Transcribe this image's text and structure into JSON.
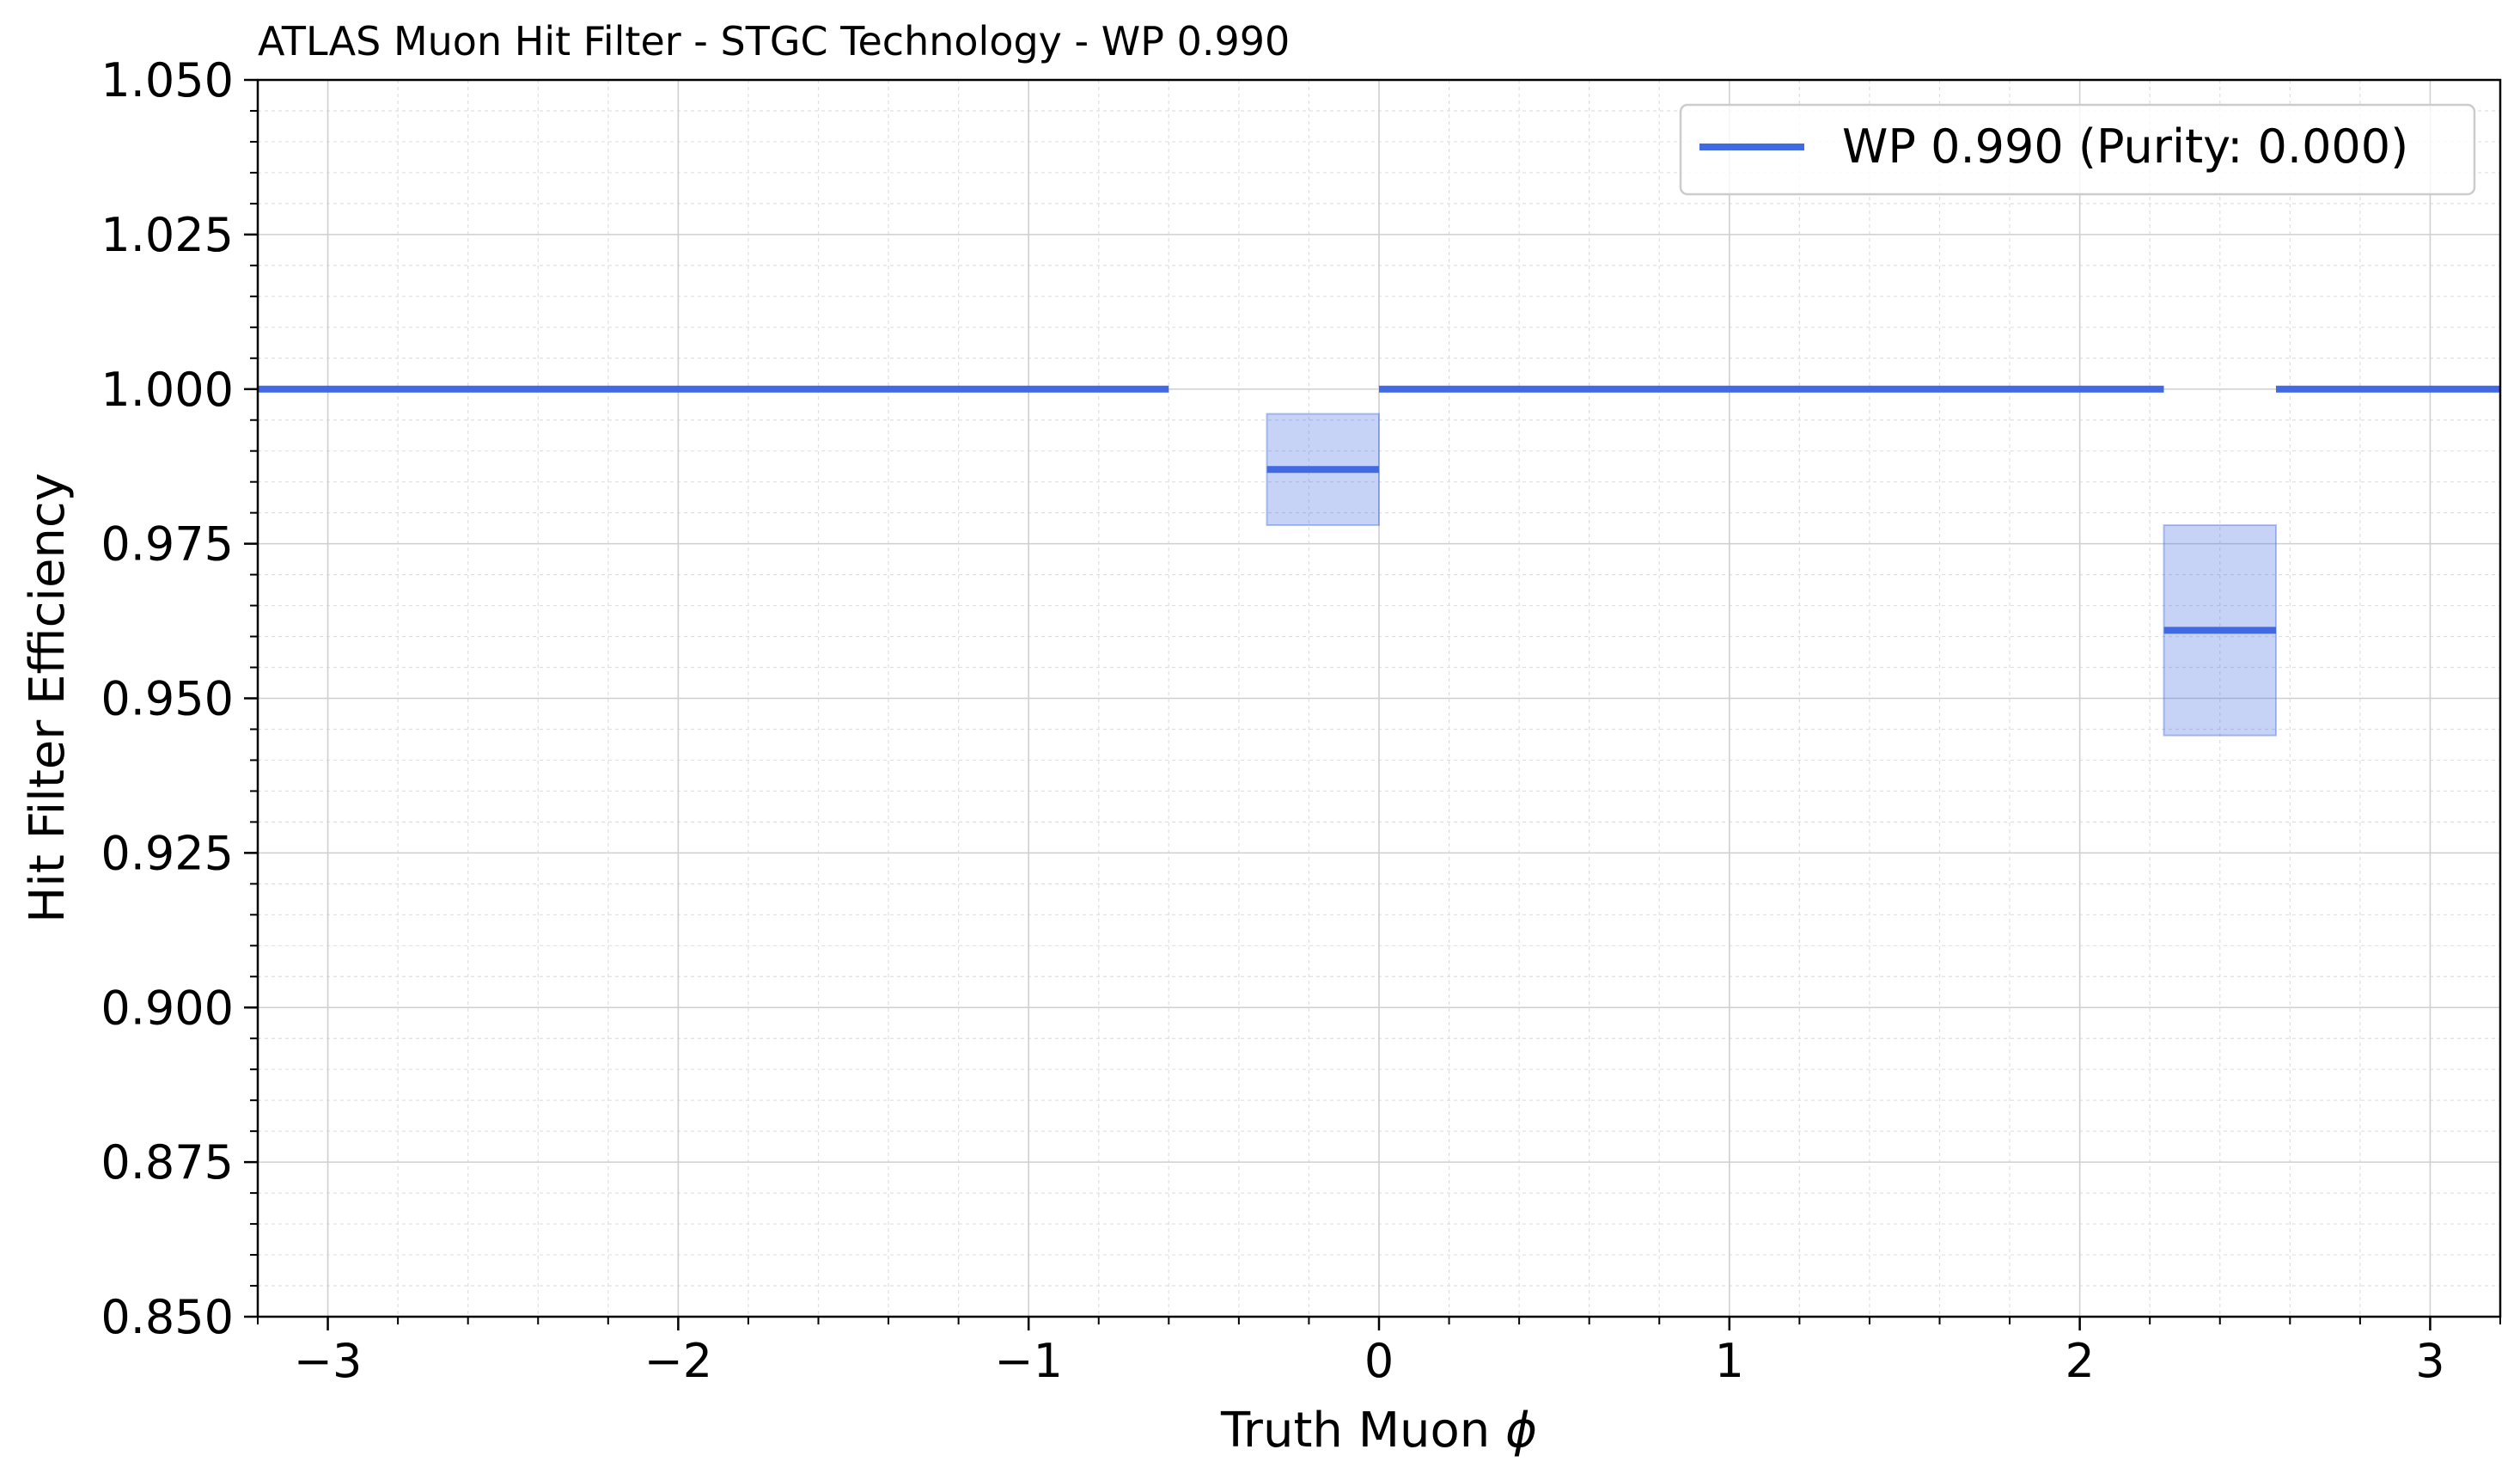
{
  "chart_data": {
    "type": "step",
    "title": "ATLAS Muon Hit Filter - STGC Technology - WP 0.990",
    "xlabel": "Truth Muon",
    "xlabel_symbol": "ϕ",
    "ylabel": "Hit Filter Efficiency",
    "xlim": [
      -3.2,
      3.2
    ],
    "ylim": [
      0.85,
      1.05
    ],
    "x_ticks": [
      {
        "value": -3,
        "label": "−3"
      },
      {
        "value": -2,
        "label": "−2"
      },
      {
        "value": -1,
        "label": "−1"
      },
      {
        "value": 0,
        "label": "0"
      },
      {
        "value": 1,
        "label": "1"
      },
      {
        "value": 2,
        "label": "2"
      },
      {
        "value": 3,
        "label": "3"
      }
    ],
    "y_ticks": [
      {
        "value": 0.85,
        "label": "0.850"
      },
      {
        "value": 0.875,
        "label": "0.875"
      },
      {
        "value": 0.9,
        "label": "0.900"
      },
      {
        "value": 0.925,
        "label": "0.925"
      },
      {
        "value": 0.95,
        "label": "0.950"
      },
      {
        "value": 0.975,
        "label": "0.975"
      },
      {
        "value": 1.0,
        "label": "1.000"
      },
      {
        "value": 1.025,
        "label": "1.025"
      },
      {
        "value": 1.05,
        "label": "1.050"
      }
    ],
    "grid": true,
    "minor_grid": true,
    "legend_position": "top-right",
    "series": [
      {
        "name": "WP 0.990 (Purity: 0.000)",
        "color": "#4169e1",
        "bins": [
          {
            "x0": -3.2,
            "x1": -0.6,
            "y": 1.0,
            "lo": 1.0,
            "hi": 1.0
          },
          {
            "x0": -0.32,
            "x1": 0.0,
            "y": 0.987,
            "lo": 0.978,
            "hi": 0.996
          },
          {
            "x0": 0.0,
            "x1": 2.24,
            "y": 1.0,
            "lo": 1.0,
            "hi": 1.0
          },
          {
            "x0": 2.24,
            "x1": 2.56,
            "y": 0.961,
            "lo": 0.944,
            "hi": 0.978
          },
          {
            "x0": 2.56,
            "x1": 3.2,
            "y": 1.0,
            "lo": 1.0,
            "hi": 1.0
          }
        ]
      }
    ]
  }
}
